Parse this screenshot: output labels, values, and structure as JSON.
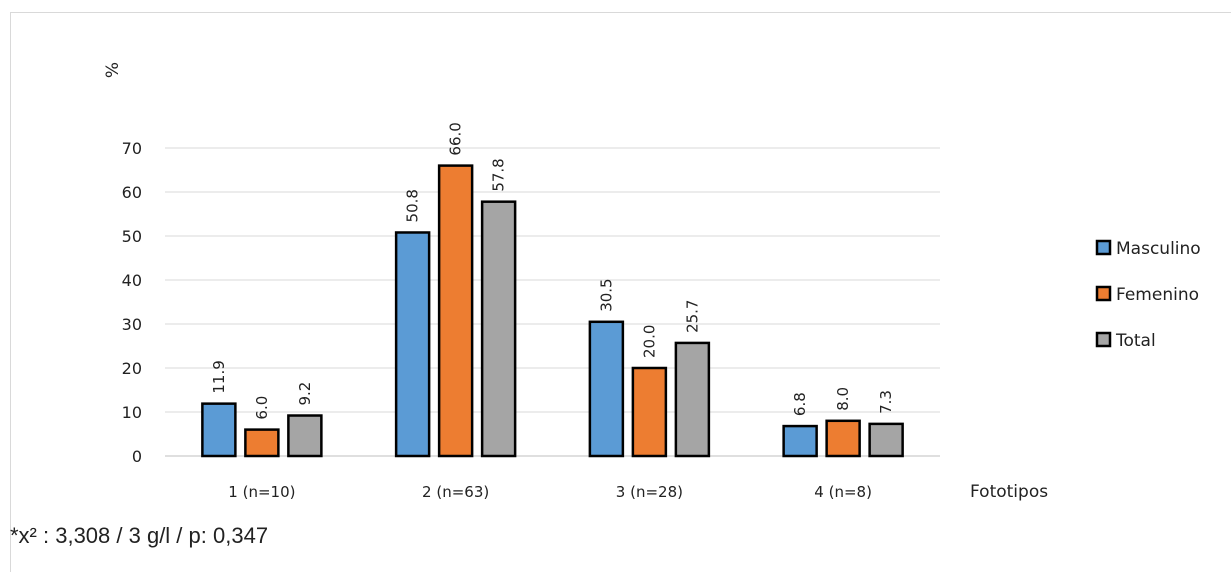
{
  "chart_data": {
    "type": "bar",
    "categories": [
      "1 (n=10)",
      "2 (n=63)",
      "3 (n=28)",
      "4 (n=8)"
    ],
    "series": [
      {
        "name": "Masculino",
        "values": [
          11.9,
          50.8,
          30.5,
          6.8
        ],
        "labels": [
          "11.9",
          "50.8",
          "30.5",
          "6.8"
        ],
        "color": "#5B9BD5"
      },
      {
        "name": "Femenino",
        "values": [
          6.0,
          66.0,
          20.0,
          8.0
        ],
        "labels": [
          "6.0",
          "66.0",
          "20.0",
          "8.0"
        ],
        "color": "#ED7D31"
      },
      {
        "name": "Total",
        "values": [
          9.2,
          57.8,
          25.7,
          7.3
        ],
        "labels": [
          "9.2",
          "57.8",
          "25.7",
          "7.3"
        ],
        "color": "#A5A5A5"
      }
    ],
    "title": "",
    "xlabel": "Fototipos",
    "ylabel": "%",
    "ylim": [
      0,
      70
    ],
    "yticks": [
      "0",
      "10",
      "20",
      "30",
      "40",
      "50",
      "60",
      "70"
    ],
    "grid": true,
    "legend": "right"
  },
  "footnote": "*x² : 3,308 / 3 g/l / p: 0,347"
}
